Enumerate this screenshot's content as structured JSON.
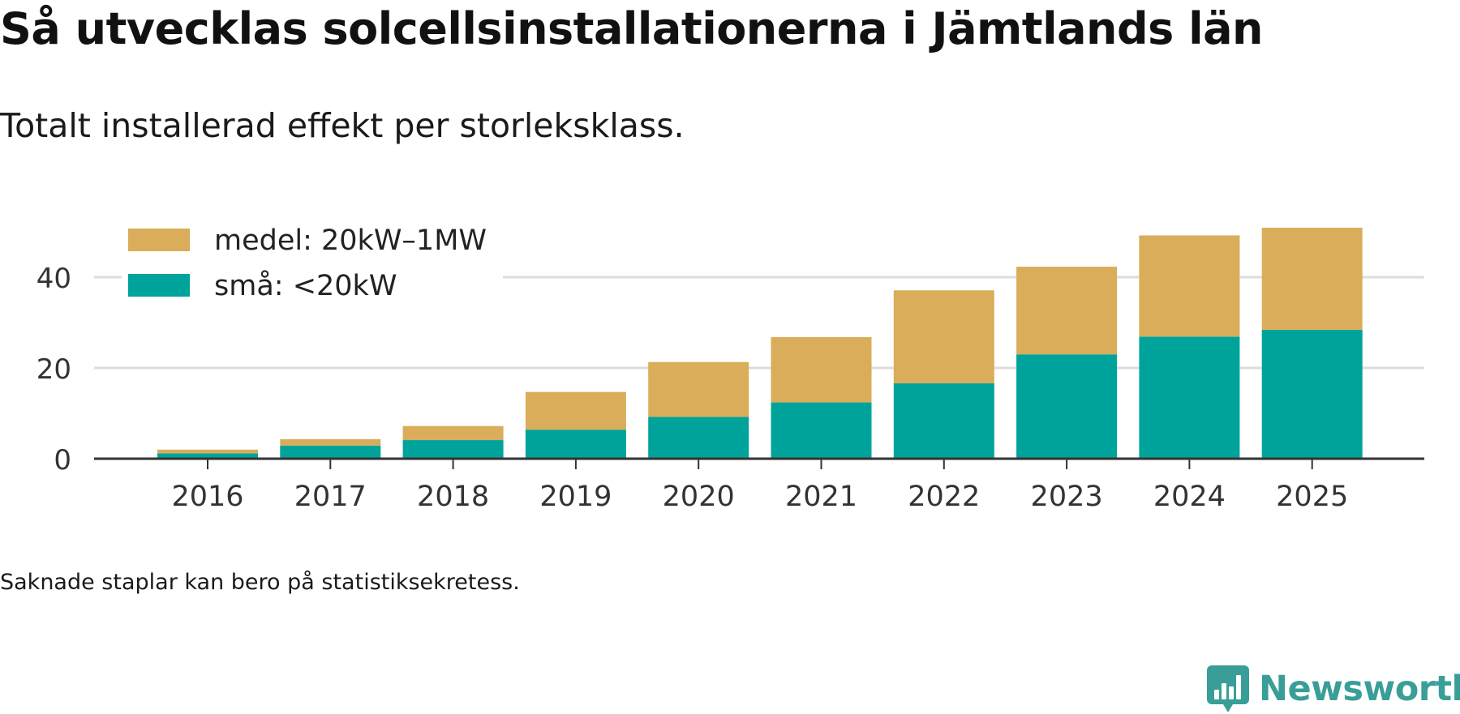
{
  "title": "Så utvecklas solcellsinstallationerna i Jämtlands län",
  "subtitle": "Totalt installerad effekt per storleksklass.",
  "footnote": "Saknade staplar kan bero på statistiksekretess.",
  "brand": "Newsworthy",
  "colors": {
    "medel": "#d9ad5a",
    "sma": "#00a39b",
    "grid": "#dddddd",
    "axis": "#333333",
    "brand": "#3a9e98"
  },
  "chart_data": {
    "type": "bar",
    "stacked": true,
    "categories": [
      "2016",
      "2017",
      "2018",
      "2019",
      "2020",
      "2021",
      "2022",
      "2023",
      "2024",
      "2025"
    ],
    "series": [
      {
        "name": "små: <20kW",
        "key": "sma",
        "values": [
          1.2,
          2.9,
          4.1,
          6.4,
          9.2,
          12.4,
          16.6,
          23.0,
          26.9,
          28.4
        ]
      },
      {
        "name": "medel: 20kW–1MW",
        "key": "medel",
        "values": [
          0.8,
          1.4,
          3.1,
          8.3,
          12.1,
          14.4,
          20.5,
          19.3,
          22.3,
          22.5
        ]
      }
    ],
    "legend": [
      {
        "label": "medel: 20kW–1MW",
        "key": "medel"
      },
      {
        "label": "små: <20kW",
        "key": "sma"
      }
    ],
    "legend_position": "top-left",
    "yticks": [
      "0",
      "20",
      "40"
    ],
    "ytick_values": [
      0,
      20,
      40
    ],
    "ylim": [
      0,
      53
    ],
    "xlabel": "",
    "ylabel": "",
    "grid": true
  }
}
